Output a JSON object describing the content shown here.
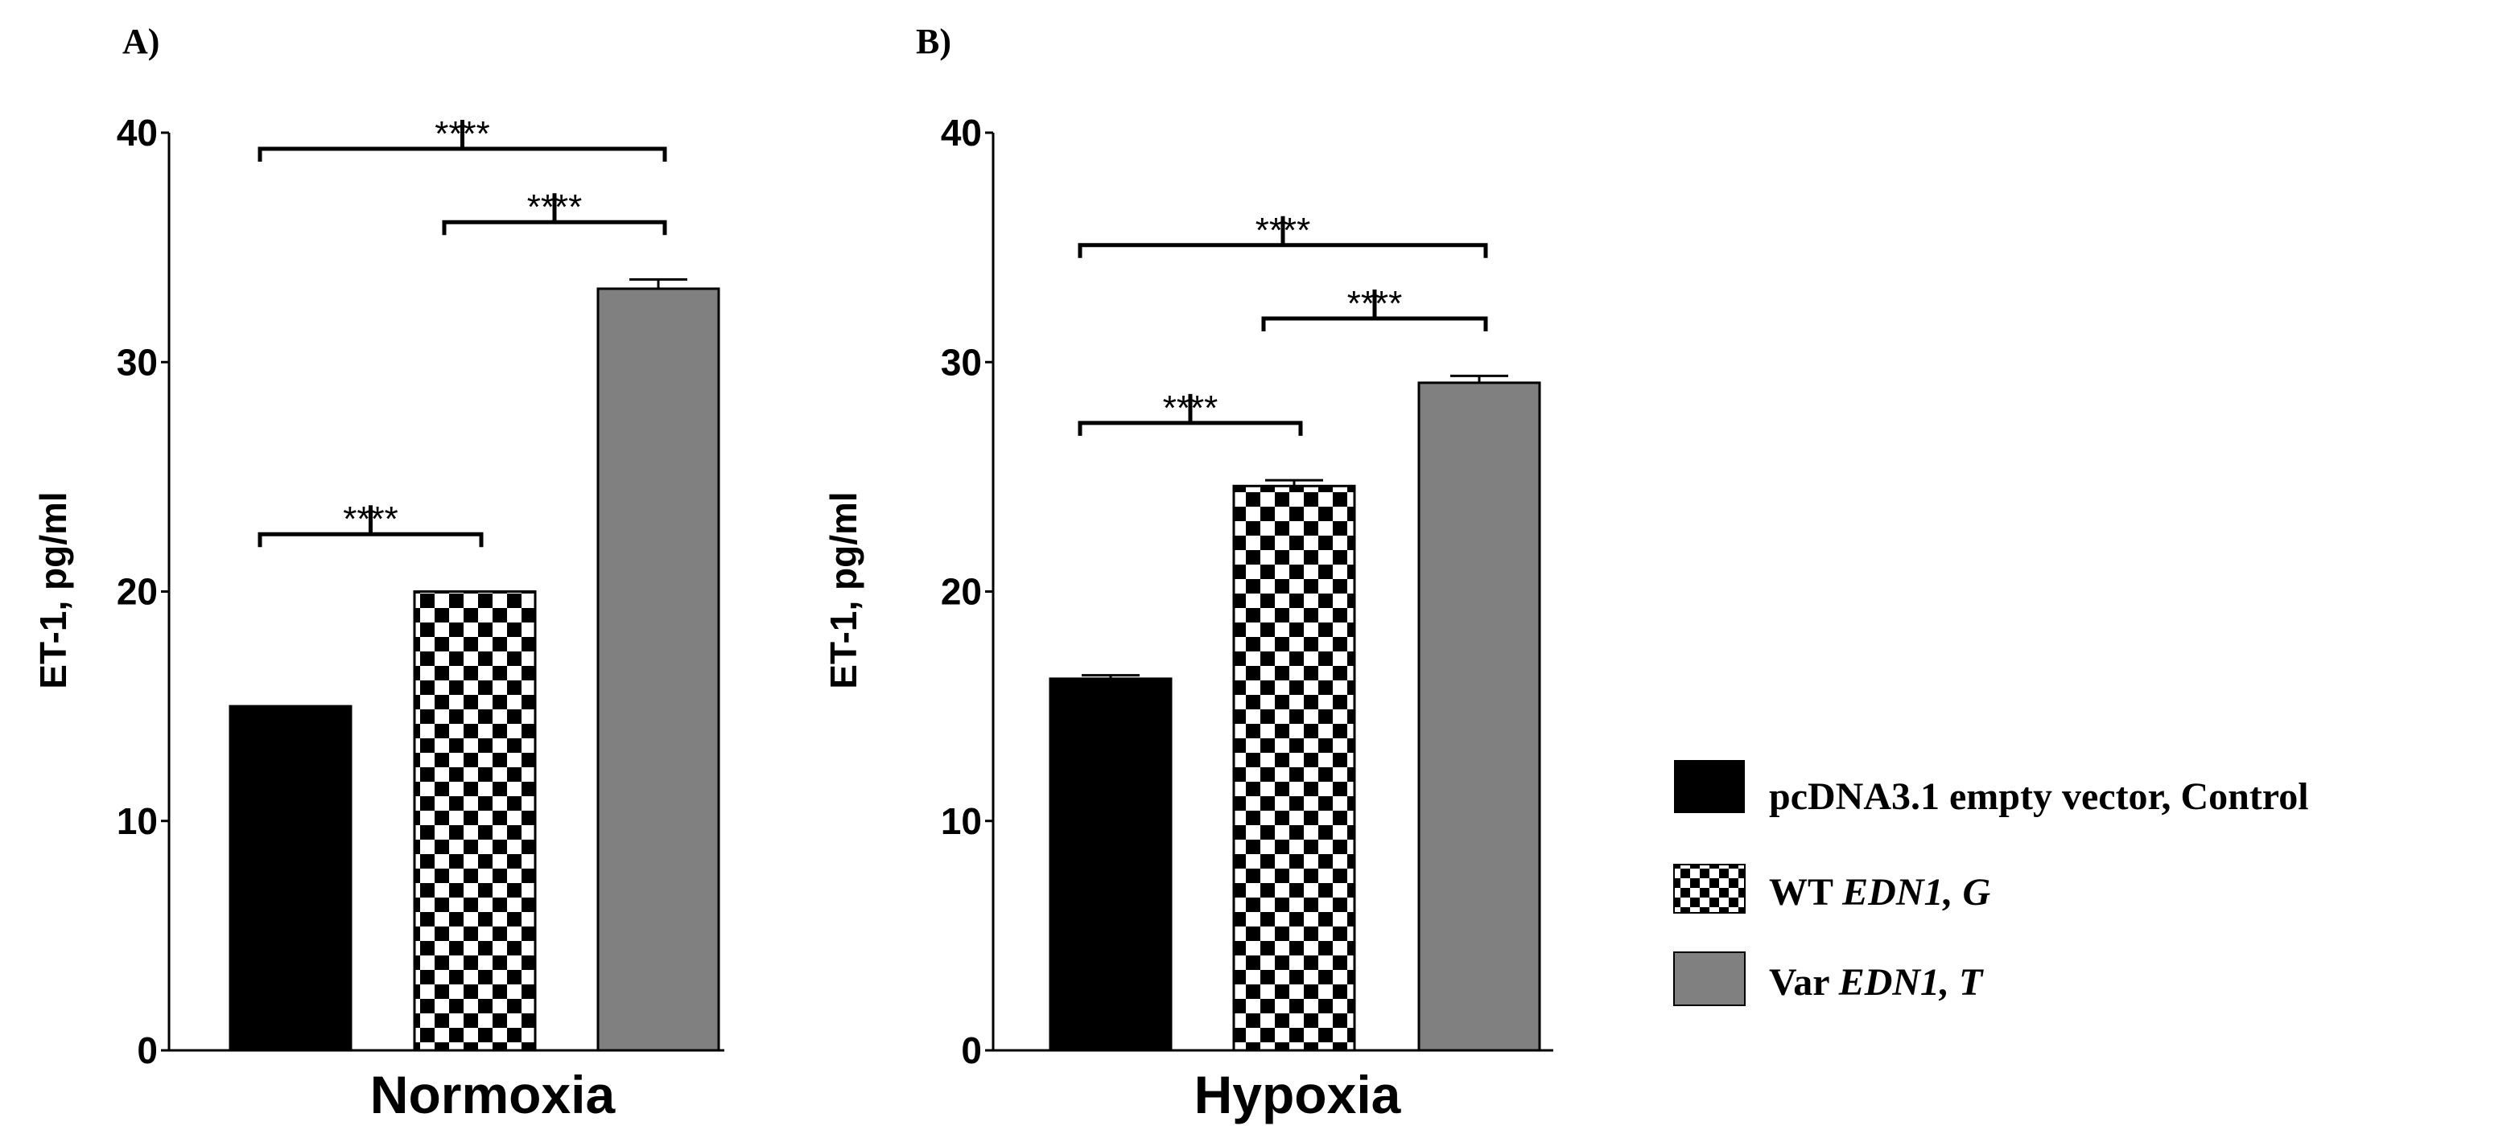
{
  "colors": {
    "control": "#000000",
    "wt_check_dark": "#000000",
    "wt_check_light": "#ffffff",
    "var": "#808080",
    "axis": "#000000",
    "background": "#ffffff"
  },
  "legend": {
    "items": [
      {
        "pattern": "solid-black",
        "text": "pcDNA3.1 empty vector, Control",
        "italic": ""
      },
      {
        "pattern": "checker",
        "text": "WT ",
        "italic": "EDN1, G"
      },
      {
        "pattern": "solid-gray",
        "text": "Var ",
        "italic": "EDN1, T"
      }
    ]
  },
  "chart_data": [
    {
      "type": "bar",
      "panel_label": "A)",
      "xlabel": "Normoxia",
      "ylabel": "ET-1, pg/ml",
      "ylim": [
        0,
        40
      ],
      "yticks": [
        0,
        10,
        20,
        30,
        40
      ],
      "grid": false,
      "categories": [
        "pcDNA3.1 empty vector, Control",
        "WT EDN1, G",
        "Var EDN1, T"
      ],
      "values": [
        15.0,
        20.0,
        33.2
      ],
      "errors": [
        0.0,
        0.0,
        0.4
      ],
      "significance": [
        {
          "from": 1,
          "to": 2,
          "label": "****"
        },
        {
          "from": 2,
          "to": 3,
          "label": "****"
        },
        {
          "from": 1,
          "to": 3,
          "label": "****"
        }
      ]
    },
    {
      "type": "bar",
      "panel_label": "B)",
      "xlabel": "Hypoxia",
      "ylabel": "ET-1, pg/ml",
      "ylim": [
        0,
        40
      ],
      "yticks": [
        0,
        10,
        20,
        30,
        40
      ],
      "grid": false,
      "categories": [
        "pcDNA3.1 empty vector, Control",
        "WT EDN1, G",
        "Var EDN1, T"
      ],
      "values": [
        16.2,
        24.6,
        29.1
      ],
      "errors": [
        0.15,
        0.25,
        0.3
      ],
      "significance": [
        {
          "from": 1,
          "to": 2,
          "label": "****"
        },
        {
          "from": 2,
          "to": 3,
          "label": "****"
        },
        {
          "from": 1,
          "to": 3,
          "label": "****"
        }
      ]
    }
  ]
}
